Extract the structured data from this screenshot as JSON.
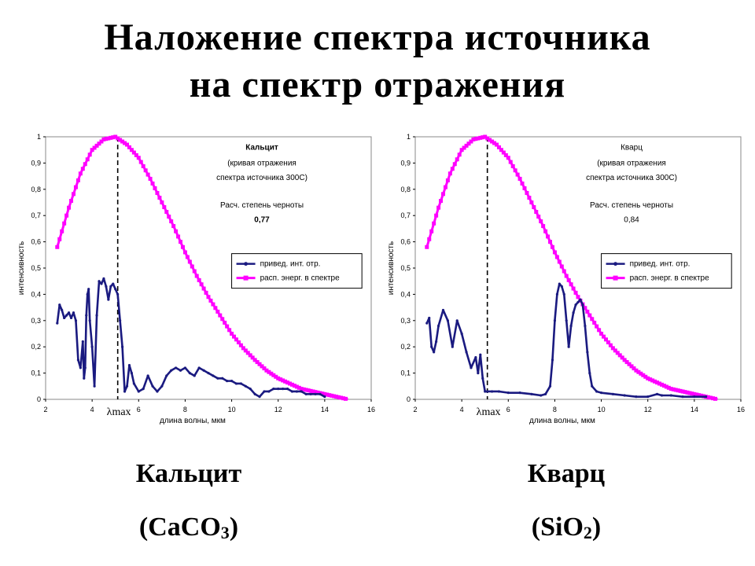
{
  "slide": {
    "title_line1": "Наложение спектра источника",
    "title_line2": "на спектр отражения"
  },
  "captions": [
    {
      "name": "Кальцит",
      "formula_open": "(CaCO",
      "formula_sub": "3",
      "formula_close": ")"
    },
    {
      "name": "Кварц",
      "formula_open": "(SiO",
      "formula_sub": "2",
      "formula_close": ")"
    }
  ],
  "colors": {
    "reflection": "#1a1a80",
    "energy": "#ff00ff",
    "axis": "#000000"
  },
  "chart_data": [
    {
      "type": "line",
      "xlabel": "длина волны, мкм",
      "ylabel": "интенсивность",
      "xlim": [
        2,
        16
      ],
      "ylim": [
        0,
        1
      ],
      "x_ticks": [
        "2",
        "4",
        "6",
        "8",
        "10",
        "12",
        "14",
        "16"
      ],
      "y_ticks": [
        "0",
        "0,1",
        "0,2",
        "0,3",
        "0,4",
        "0,5",
        "0,6",
        "0,7",
        "0,8",
        "0,9",
        "1"
      ],
      "lambda_max_label": "λmax",
      "lambda_max_x": 5.1,
      "annotation": [
        "Кальцит",
        "(кривая отражения",
        "спектра источника 300С)",
        "Расч. степень черноты",
        "0,77"
      ],
      "legend": [
        "привед. инт. отр.",
        "расп. энерг. в спектре"
      ],
      "series": [
        {
          "name": "привед. инт. отр.",
          "x": [
            2.5,
            2.6,
            2.7,
            2.8,
            2.9,
            3.0,
            3.1,
            3.2,
            3.3,
            3.4,
            3.5,
            3.6,
            3.65,
            3.7,
            3.75,
            3.8,
            3.85,
            3.9,
            4.0,
            4.1,
            4.2,
            4.3,
            4.4,
            4.5,
            4.6,
            4.7,
            4.8,
            4.9,
            5.0,
            5.1,
            5.2,
            5.3,
            5.4,
            5.5,
            5.6,
            5.7,
            5.8,
            6.0,
            6.2,
            6.4,
            6.6,
            6.8,
            7.0,
            7.2,
            7.4,
            7.6,
            7.8,
            8.0,
            8.2,
            8.4,
            8.6,
            8.8,
            9.0,
            9.2,
            9.4,
            9.6,
            9.8,
            10.0,
            10.2,
            10.4,
            10.6,
            10.8,
            11.0,
            11.2,
            11.4,
            11.6,
            11.8,
            12.0,
            12.2,
            12.4,
            12.6,
            12.8,
            13.0,
            13.2,
            13.4,
            13.6,
            13.8,
            14.0
          ],
          "y": [
            0.29,
            0.36,
            0.34,
            0.31,
            0.32,
            0.33,
            0.31,
            0.33,
            0.3,
            0.15,
            0.12,
            0.22,
            0.08,
            0.12,
            0.32,
            0.4,
            0.42,
            0.3,
            0.2,
            0.05,
            0.32,
            0.45,
            0.44,
            0.46,
            0.43,
            0.38,
            0.43,
            0.44,
            0.42,
            0.4,
            0.3,
            0.2,
            0.03,
            0.05,
            0.13,
            0.1,
            0.06,
            0.03,
            0.04,
            0.09,
            0.05,
            0.03,
            0.05,
            0.09,
            0.11,
            0.12,
            0.11,
            0.12,
            0.1,
            0.09,
            0.12,
            0.11,
            0.1,
            0.09,
            0.08,
            0.08,
            0.07,
            0.07,
            0.06,
            0.06,
            0.05,
            0.04,
            0.02,
            0.01,
            0.03,
            0.03,
            0.04,
            0.04,
            0.04,
            0.04,
            0.03,
            0.03,
            0.03,
            0.02,
            0.02,
            0.02,
            0.02,
            0.01
          ]
        },
        {
          "name": "расп. энерг. в спектре",
          "x": [
            2.5,
            3.0,
            3.5,
            4.0,
            4.5,
            5.0,
            5.5,
            6.0,
            6.5,
            7.0,
            7.5,
            8.0,
            8.5,
            9.0,
            9.5,
            10.0,
            10.5,
            11.0,
            11.5,
            12.0,
            12.5,
            13.0,
            13.5,
            14.0,
            14.5,
            15.0
          ],
          "y": [
            0.58,
            0.73,
            0.86,
            0.95,
            0.99,
            1.0,
            0.97,
            0.92,
            0.84,
            0.75,
            0.66,
            0.56,
            0.47,
            0.39,
            0.32,
            0.25,
            0.195,
            0.15,
            0.11,
            0.08,
            0.06,
            0.04,
            0.03,
            0.02,
            0.01,
            0.0
          ]
        }
      ]
    },
    {
      "type": "line",
      "xlabel": "длина волны, мкм",
      "ylabel": "интенсивность",
      "xlim": [
        2,
        16
      ],
      "ylim": [
        0,
        1
      ],
      "x_ticks": [
        "2",
        "4",
        "6",
        "8",
        "10",
        "12",
        "14",
        "16"
      ],
      "y_ticks": [
        "0",
        "0,1",
        "0,2",
        "0,3",
        "0,4",
        "0,5",
        "0,6",
        "0,7",
        "0,8",
        "0,9",
        "1"
      ],
      "lambda_max_label": "λmax",
      "lambda_max_x": 5.1,
      "annotation": [
        "Кварц",
        "(кривая отражения",
        "спектра источника 300С)",
        "Расч. степень черноты",
        "0,84"
      ],
      "legend": [
        "привед. инт. отр.",
        "расп. энерг. в спектре"
      ],
      "series": [
        {
          "name": "привед. инт. отр.",
          "x": [
            2.5,
            2.6,
            2.7,
            2.8,
            2.9,
            3.0,
            3.2,
            3.4,
            3.6,
            3.8,
            4.0,
            4.2,
            4.4,
            4.6,
            4.7,
            4.8,
            4.9,
            5.0,
            5.1,
            5.3,
            5.6,
            6.0,
            6.5,
            7.0,
            7.4,
            7.6,
            7.8,
            7.9,
            8.0,
            8.1,
            8.2,
            8.3,
            8.4,
            8.5,
            8.6,
            8.7,
            8.8,
            8.9,
            9.0,
            9.1,
            9.2,
            9.3,
            9.4,
            9.5,
            9.6,
            9.8,
            10.0,
            10.5,
            11.0,
            11.5,
            12.0,
            12.4,
            12.6,
            13.0,
            13.5,
            14.0,
            14.5
          ],
          "y": [
            0.29,
            0.31,
            0.2,
            0.18,
            0.22,
            0.28,
            0.34,
            0.3,
            0.2,
            0.3,
            0.25,
            0.18,
            0.12,
            0.16,
            0.1,
            0.17,
            0.08,
            0.03,
            0.03,
            0.03,
            0.03,
            0.025,
            0.025,
            0.02,
            0.015,
            0.02,
            0.05,
            0.15,
            0.3,
            0.4,
            0.44,
            0.43,
            0.4,
            0.3,
            0.2,
            0.28,
            0.33,
            0.36,
            0.37,
            0.38,
            0.36,
            0.28,
            0.18,
            0.1,
            0.05,
            0.03,
            0.025,
            0.02,
            0.015,
            0.01,
            0.01,
            0.02,
            0.015,
            0.015,
            0.01,
            0.01,
            0.01
          ]
        },
        {
          "name": "расп. энерг. в спектре",
          "x": [
            2.5,
            3.0,
            3.5,
            4.0,
            4.5,
            5.0,
            5.5,
            6.0,
            6.5,
            7.0,
            7.5,
            8.0,
            8.5,
            9.0,
            9.5,
            10.0,
            10.5,
            11.0,
            11.5,
            12.0,
            12.5,
            13.0,
            13.5,
            14.0,
            14.5,
            15.0
          ],
          "y": [
            0.58,
            0.73,
            0.86,
            0.95,
            0.99,
            1.0,
            0.97,
            0.92,
            0.84,
            0.75,
            0.66,
            0.56,
            0.47,
            0.39,
            0.32,
            0.25,
            0.195,
            0.15,
            0.11,
            0.08,
            0.06,
            0.04,
            0.03,
            0.02,
            0.01,
            0.0
          ]
        }
      ]
    }
  ]
}
